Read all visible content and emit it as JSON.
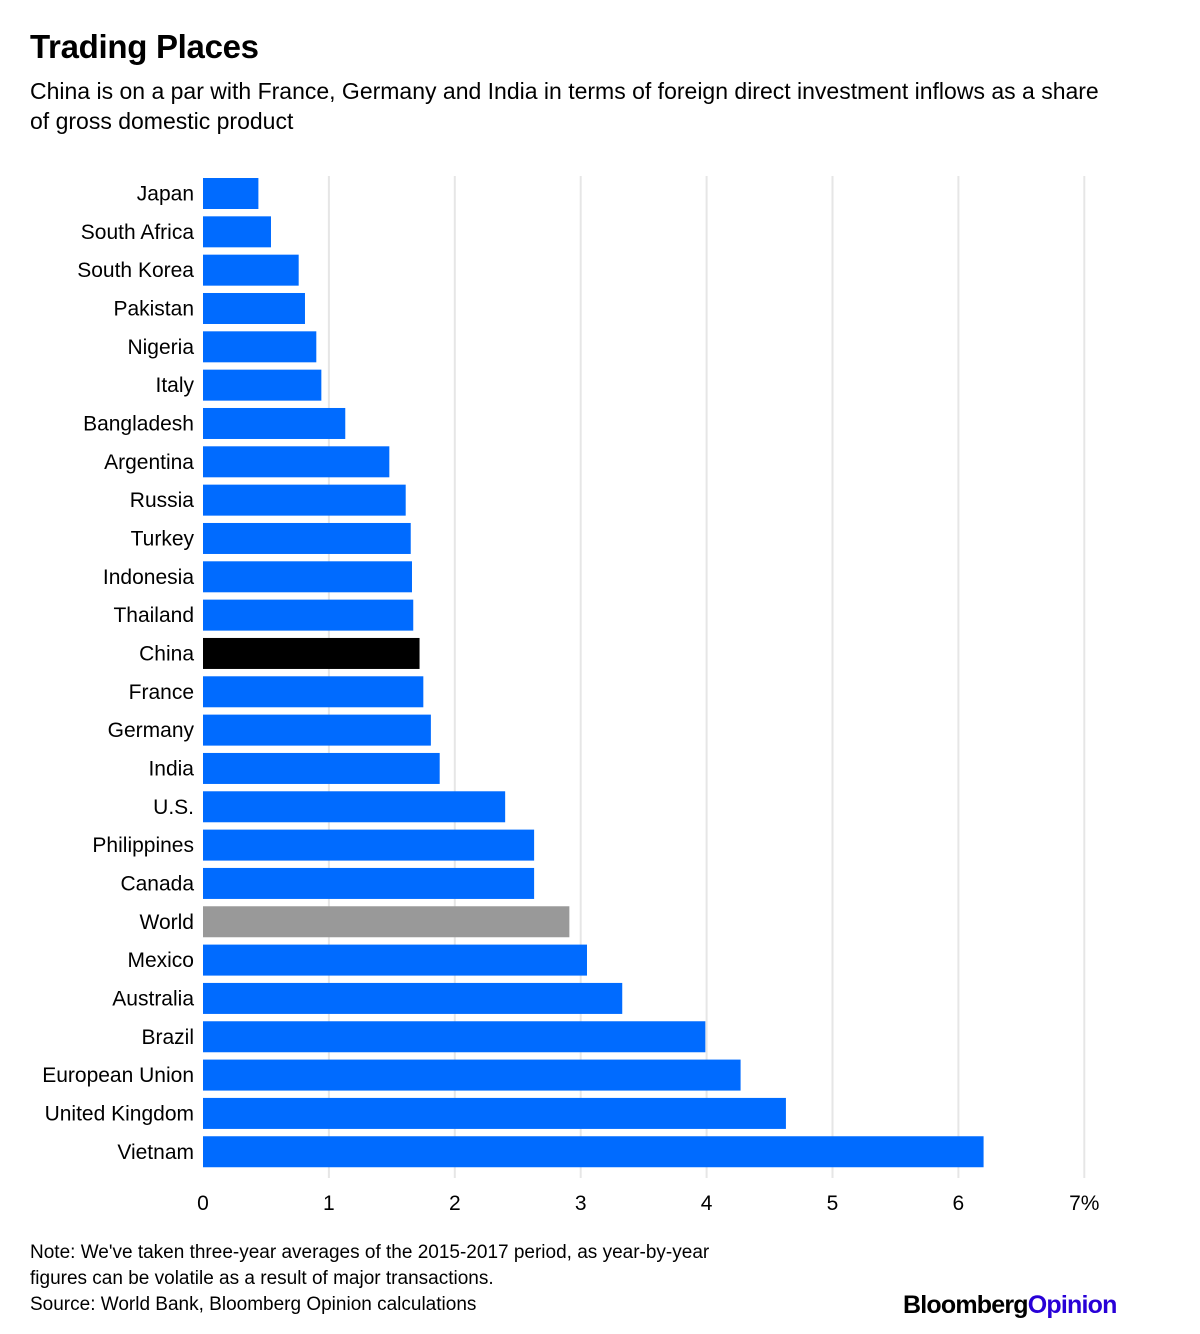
{
  "chart_data": {
    "type": "bar",
    "orientation": "horizontal",
    "title": "Trading Places",
    "subtitle": "China is on a par with France, Germany and India in terms of foreign direct investment inflows as a share of gross domestic product",
    "categories": [
      "Japan",
      "South Africa",
      "South Korea",
      "Pakistan",
      "Nigeria",
      "Italy",
      "Bangladesh",
      "Argentina",
      "Russia",
      "Turkey",
      "Indonesia",
      "Thailand",
      "China",
      "France",
      "Germany",
      "India",
      "U.S.",
      "Philippines",
      "Canada",
      "World",
      "Mexico",
      "Australia",
      "Brazil",
      "European Union",
      "United Kingdom",
      "Vietnam"
    ],
    "values": [
      0.44,
      0.54,
      0.76,
      0.81,
      0.9,
      0.94,
      1.13,
      1.48,
      1.61,
      1.65,
      1.66,
      1.67,
      1.72,
      1.75,
      1.81,
      1.88,
      2.4,
      2.63,
      2.63,
      2.91,
      3.05,
      3.33,
      3.99,
      4.27,
      4.63,
      6.2
    ],
    "bar_colors": [
      "#006bff",
      "#006bff",
      "#006bff",
      "#006bff",
      "#006bff",
      "#006bff",
      "#006bff",
      "#006bff",
      "#006bff",
      "#006bff",
      "#006bff",
      "#006bff",
      "#000000",
      "#006bff",
      "#006bff",
      "#006bff",
      "#006bff",
      "#006bff",
      "#006bff",
      "#999999",
      "#006bff",
      "#006bff",
      "#006bff",
      "#006bff",
      "#006bff",
      "#006bff"
    ],
    "xticks": [
      0,
      1,
      2,
      3,
      4,
      5,
      6,
      7
    ],
    "xtick_labels": [
      "0",
      "1",
      "2",
      "3",
      "4",
      "5",
      "6",
      "7%"
    ],
    "xlim": [
      0,
      7
    ],
    "xlabel": "",
    "ylabel": "",
    "grid": true,
    "legend": "none"
  },
  "colors": {
    "bar_default": "#006bff",
    "bar_highlight": "#000000",
    "bar_world": "#999999",
    "gridline": "#e6e6e6",
    "brand_opinion": "#2800d7"
  },
  "footer": {
    "note_line1": "Note: We've taken three-year averages of the 2015-2017 period, as year-by-year",
    "note_line2": "figures can be volatile as a result of major transactions.",
    "source": "Source: World Bank, Bloomberg Opinion calculations",
    "brand_main": "Bloomberg",
    "brand_opinion": "Opinion"
  }
}
